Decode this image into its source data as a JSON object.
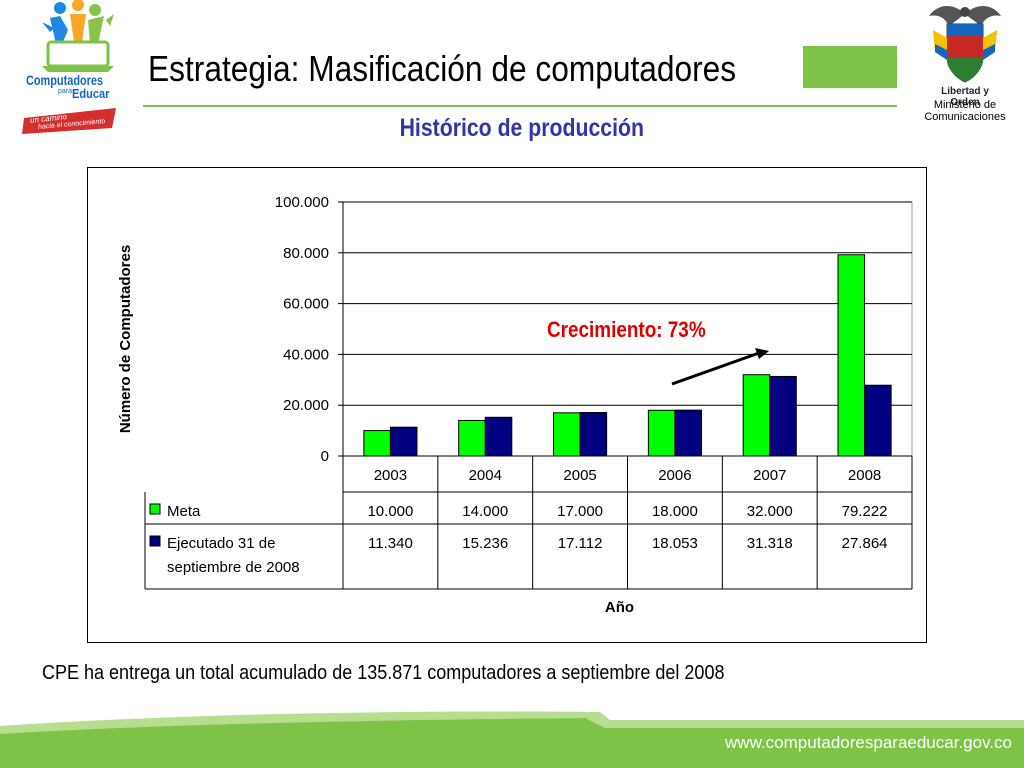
{
  "header": {
    "title": "Estrategia: Masificación de computadores",
    "subtitle": "Histórico de producción"
  },
  "logo": {
    "brand_line1": "Computadores",
    "brand_line2_small": "para",
    "brand_line2": "Educar",
    "tagline_line1": "un camino",
    "tagline_line2": "hacia el conocimiento"
  },
  "ministry": {
    "motto": "Libertad y Orden",
    "name_line1": "Ministerio de",
    "name_line2": "Comunicaciones"
  },
  "chart_data": {
    "type": "bar",
    "title": "",
    "xlabel": "Año",
    "ylabel": "Número de Computadores",
    "ylim": [
      0,
      100000
    ],
    "yticks": [
      "0",
      "20.000",
      "40.000",
      "60.000",
      "80.000",
      "100.000"
    ],
    "ytick_values": [
      0,
      20000,
      40000,
      60000,
      80000,
      100000
    ],
    "categories": [
      "2003",
      "2004",
      "2005",
      "2006",
      "2007",
      "2008"
    ],
    "series": [
      {
        "name": "Meta",
        "color": "#00ff00",
        "values": [
          10000,
          14000,
          17000,
          18000,
          32000,
          79222
        ],
        "labels": [
          "10.000",
          "14.000",
          "17.000",
          "18.000",
          "32.000",
          "79.222"
        ]
      },
      {
        "name": "Ejecutado 31 de septiembre de 2008",
        "color": "#000080",
        "values": [
          11340,
          15236,
          17112,
          18053,
          31318,
          27864
        ],
        "labels": [
          "11.340",
          "15.236",
          "17.112",
          "18.053",
          "31.318",
          "27.864"
        ]
      }
    ],
    "legend_placement": "data-table",
    "grid": true,
    "annotation": "Crecimiento: 73%"
  },
  "caption": "CPE ha entrega un total acumulado de 135.871 computadores a septiembre del 2008",
  "footer": {
    "url": "www.computadoresparaeducar.gov.co",
    "colors": {
      "band": "#7ec347",
      "band_light": "#b7dd8e"
    }
  }
}
